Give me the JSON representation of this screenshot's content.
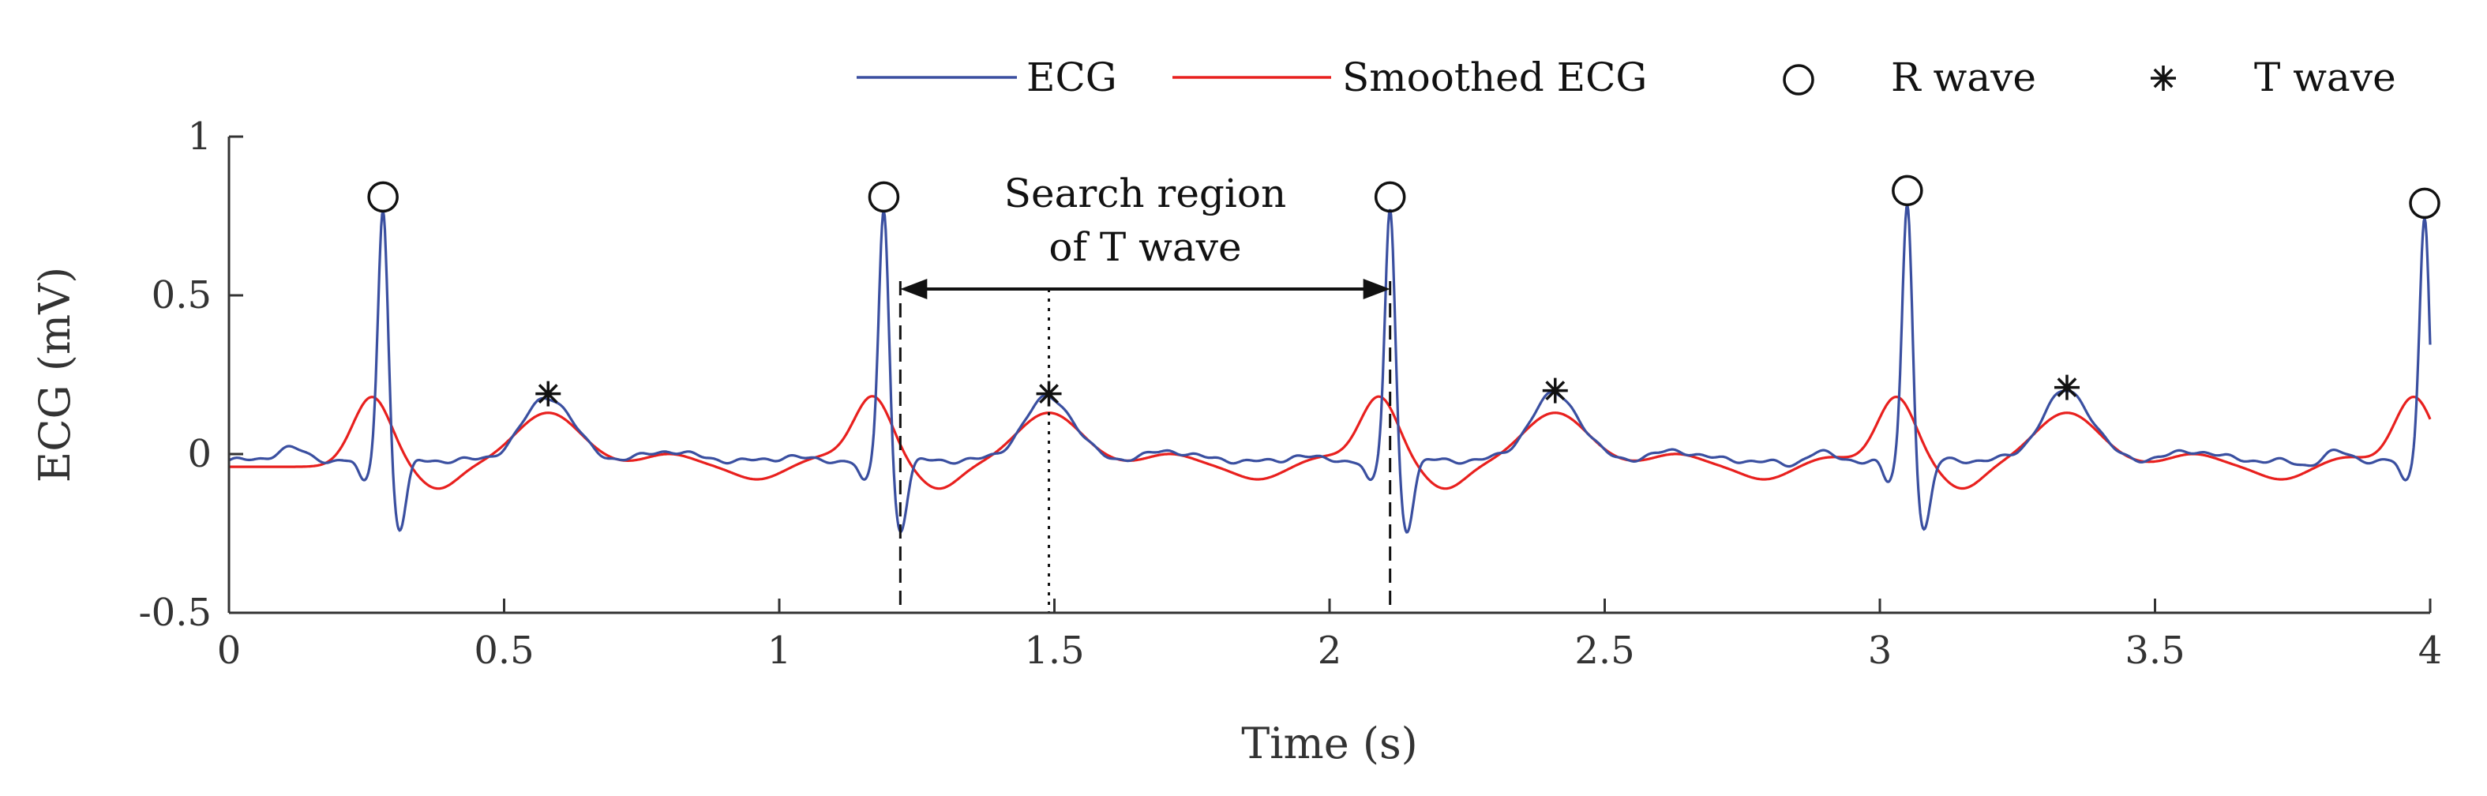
{
  "chart_data": {
    "type": "line",
    "xlabel": "Time (s)",
    "ylabel": "ECG (mV)",
    "xlim": [
      0,
      4
    ],
    "ylim": [
      -0.5,
      1
    ],
    "xticks": [
      0,
      0.5,
      1,
      1.5,
      2,
      2.5,
      3,
      3.5,
      4
    ],
    "xtick_labels": [
      "0",
      "0.5",
      "1",
      "1.5",
      "2",
      "2.5",
      "3",
      "3.5",
      "4"
    ],
    "yticks": [
      -0.5,
      0,
      0.5,
      1
    ],
    "ytick_labels": [
      "-0.5",
      "0",
      "0.5",
      "1"
    ],
    "grid": false,
    "legend_position": "top-right, outside plot, horizontal",
    "series": [
      {
        "name": "ECG",
        "color": "#3a4fa0",
        "baseline": -0.02,
        "beats": [
          {
            "r_time": 0.28,
            "r_amp": 0.8,
            "t_time": 0.58,
            "t_amp": 0.19
          },
          {
            "r_time": 1.19,
            "r_amp": 0.8,
            "t_time": 1.49,
            "t_amp": 0.19
          },
          {
            "r_time": 2.11,
            "r_amp": 0.8,
            "t_time": 2.41,
            "t_amp": 0.2
          },
          {
            "r_time": 3.05,
            "r_amp": 0.82,
            "t_time": 3.34,
            "t_amp": 0.21
          },
          {
            "r_time": 3.99,
            "r_amp": 0.78,
            "t_time": null,
            "t_amp": null
          }
        ]
      },
      {
        "name": "Smoothed ECG",
        "color": "#e8201e",
        "baseline": -0.04,
        "peaks_at_r": 0.14,
        "peaks_at_t": 0.13
      }
    ],
    "markers": [
      {
        "name": "R wave",
        "symbol": "circle",
        "points": [
          [
            0.28,
            0.81
          ],
          [
            1.19,
            0.81
          ],
          [
            2.11,
            0.81
          ],
          [
            3.05,
            0.83
          ],
          [
            3.99,
            0.79
          ]
        ]
      },
      {
        "name": "T wave",
        "symbol": "asterisk",
        "points": [
          [
            0.58,
            0.19
          ],
          [
            1.49,
            0.19
          ],
          [
            2.41,
            0.2
          ],
          [
            3.34,
            0.21
          ]
        ]
      }
    ],
    "legend": [
      "ECG",
      "Smoothed ECG",
      "R wave",
      "T wave"
    ],
    "annotation": {
      "text_line1": "Search region",
      "text_line2": "of T wave",
      "region_start": 1.22,
      "region_end": 2.11,
      "arrow_y": 0.52,
      "dotted_line_x": 1.49
    }
  }
}
